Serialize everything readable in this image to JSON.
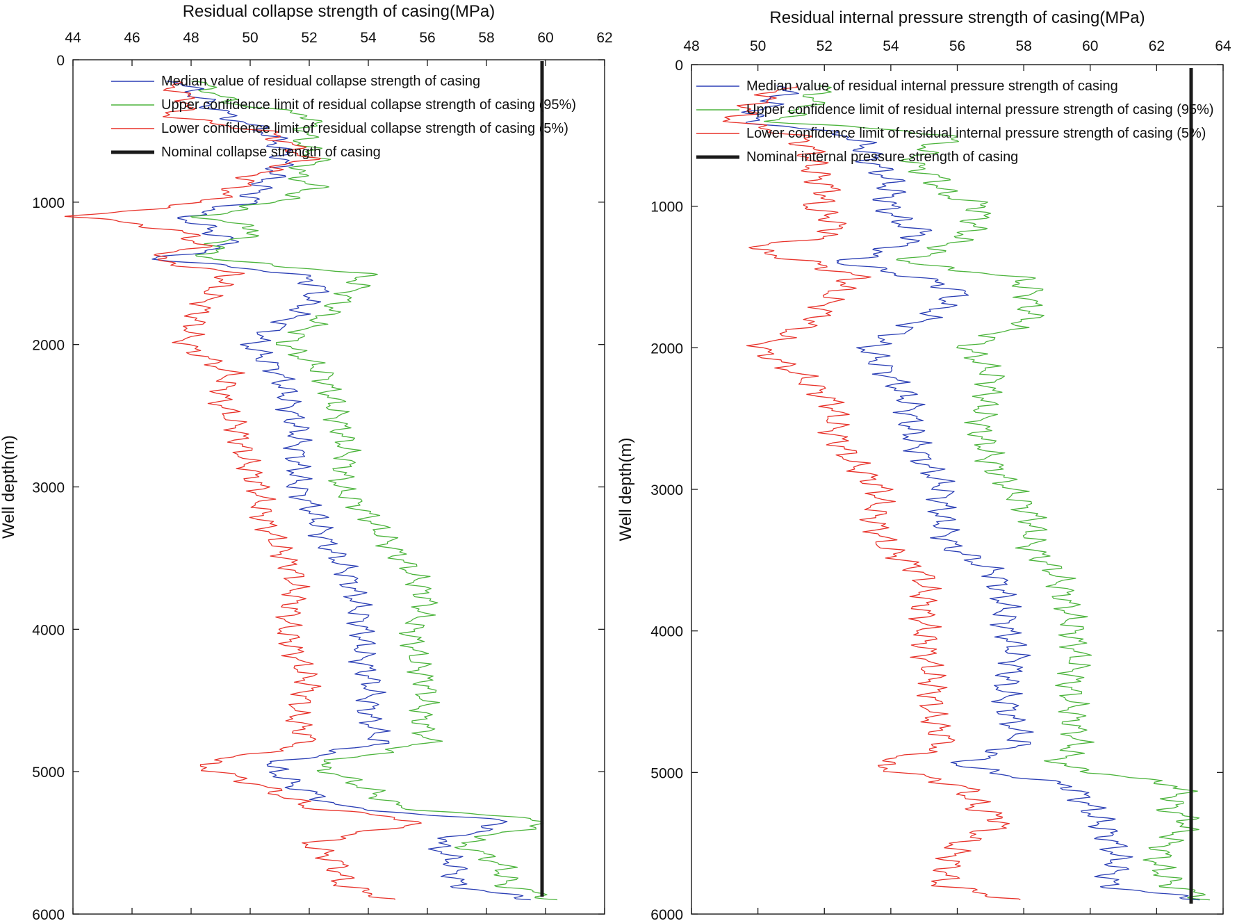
{
  "figure": {
    "panels": [
      "left-panel",
      "right-panel"
    ]
  },
  "chart_data": [
    {
      "type": "line",
      "title": "",
      "xlabel": "Residual collapse strength of casing(MPa)",
      "ylabel": "Well depth(m)",
      "xlim": [
        44,
        62
      ],
      "ylim": [
        0,
        6000
      ],
      "y_inverted": true,
      "x_axis_position": "top",
      "grid": false,
      "legend_position": "top",
      "x_ticks": [
        "44",
        "46",
        "48",
        "50",
        "52",
        "54",
        "56",
        "58",
        "60",
        "62"
      ],
      "y_ticks": [
        "0",
        "1000",
        "2000",
        "3000",
        "4000",
        "5000",
        "6000"
      ],
      "depth": [
        150,
        300,
        400,
        500,
        600,
        700,
        800,
        900,
        1000,
        1100,
        1200,
        1300,
        1400,
        1500,
        1600,
        1800,
        2000,
        2200,
        2400,
        2600,
        2800,
        3000,
        3200,
        3400,
        3600,
        3800,
        4000,
        4200,
        4400,
        4600,
        4800,
        4950,
        5100,
        5250,
        5350,
        5500,
        5650,
        5800,
        5900
      ],
      "series": [
        {
          "name": "Median value of residual collapse strength of casing",
          "color": "#2b3fb5",
          "width": 1.3,
          "values": [
            47.6,
            48.5,
            49.3,
            50.5,
            51.0,
            51.2,
            50.8,
            50.3,
            50.0,
            47.7,
            48.7,
            49.5,
            46.8,
            51.5,
            52.4,
            51.5,
            50.0,
            51.0,
            51.3,
            51.6,
            51.6,
            51.6,
            52.2,
            52.6,
            53.3,
            53.6,
            53.8,
            53.8,
            54.1,
            54.0,
            54.4,
            50.6,
            51.5,
            53.1,
            58.8,
            56.3,
            56.9,
            57.0,
            59.5
          ]
        },
        {
          "name": "Upper confidence limit of residual collapse strength of casing (95%)",
          "color": "#4cb43c",
          "width": 1.3,
          "values": [
            48.2,
            49.3,
            52.2,
            51.9,
            51.8,
            52.3,
            51.5,
            52.2,
            50.8,
            48.4,
            50.4,
            48.8,
            48.6,
            53.8,
            53.6,
            52.5,
            51.2,
            52.5,
            52.8,
            53.1,
            53.3,
            53.0,
            54.0,
            54.7,
            55.5,
            56.0,
            55.5,
            55.6,
            56.0,
            55.8,
            56.0,
            52.2,
            53.8,
            55.0,
            60.3,
            57.1,
            58.5,
            58.7,
            60.4
          ]
        },
        {
          "name": "Lower confidence limit of residual collapse strength of casing (5%)",
          "color": "#e8322a",
          "width": 1.3,
          "values": [
            47.2,
            48.0,
            47.3,
            50.5,
            51.4,
            51.9,
            50.2,
            49.6,
            48.5,
            44.2,
            47.6,
            48.4,
            46.6,
            49.4,
            48.8,
            48.2,
            47.8,
            49.3,
            49.0,
            49.6,
            49.8,
            50.3,
            50.4,
            50.9,
            51.5,
            51.5,
            51.2,
            51.6,
            52.0,
            51.5,
            52.0,
            48.2,
            50.4,
            52.0,
            55.9,
            52.0,
            53.0,
            53.1,
            54.9
          ]
        },
        {
          "name": "Nominal collapse strength of casing",
          "color": "#1a1a1a",
          "width": 5,
          "values": [
            60.0,
            60.0
          ]
        }
      ]
    },
    {
      "type": "line",
      "title": "",
      "xlabel": "Residual internal pressure strength of casing(MPa)",
      "ylabel": "Well depth(m)",
      "xlim": [
        48,
        64
      ],
      "ylim": [
        0,
        6000
      ],
      "y_inverted": true,
      "x_axis_position": "top",
      "grid": false,
      "legend_position": "top",
      "x_ticks": [
        "48",
        "50",
        "52",
        "54",
        "56",
        "58",
        "60",
        "62",
        "64"
      ],
      "y_ticks": [
        "0",
        "1000",
        "2000",
        "3000",
        "4000",
        "5000",
        "6000"
      ],
      "depth": [
        150,
        300,
        400,
        500,
        600,
        700,
        800,
        900,
        1000,
        1100,
        1200,
        1300,
        1400,
        1500,
        1600,
        1800,
        2000,
        2200,
        2400,
        2600,
        2800,
        3000,
        3200,
        3400,
        3600,
        3800,
        4000,
        4200,
        4400,
        4600,
        4800,
        4950,
        5100,
        5250,
        5350,
        5500,
        5650,
        5800,
        5900
      ],
      "series": [
        {
          "name": "Median value of residual internal pressure strength of casing",
          "color": "#2b3fb5",
          "width": 1.3,
          "values": [
            51.0,
            50.2,
            49.7,
            52.8,
            53.3,
            53.5,
            53.9,
            54.0,
            53.9,
            54.2,
            55.0,
            54.0,
            52.5,
            54.8,
            56.1,
            55.0,
            53.3,
            54.0,
            54.6,
            54.6,
            55.0,
            55.6,
            55.5,
            55.8,
            57.2,
            57.4,
            57.5,
            57.8,
            57.4,
            57.6,
            57.9,
            56.0,
            59.5,
            60.0,
            60.3,
            60.7,
            60.8,
            60.5,
            63.3
          ]
        },
        {
          "name": "Upper confidence limit of residual internal pressure strength of casing (95%)",
          "color": "#4cb43c",
          "width": 1.3,
          "values": [
            52.0,
            51.5,
            50.5,
            56.0,
            55.0,
            54.6,
            55.4,
            55.5,
            56.8,
            56.6,
            56.3,
            55.5,
            54.4,
            57.8,
            58.2,
            58.2,
            56.3,
            57.1,
            56.8,
            56.7,
            57.0,
            57.6,
            58.3,
            58.2,
            59.0,
            59.3,
            59.5,
            59.6,
            59.4,
            59.5,
            59.6,
            59.0,
            62.8,
            62.4,
            63.0,
            62.3,
            62.0,
            62.5,
            63.6
          ]
        },
        {
          "name": "Lower confidence limit of residual internal pressure strength of casing (5%)",
          "color": "#e8322a",
          "width": 1.3,
          "values": [
            50.8,
            49.8,
            49.2,
            51.2,
            51.6,
            51.6,
            51.8,
            52.2,
            51.6,
            52.3,
            52.3,
            49.7,
            51.6,
            53.0,
            52.3,
            51.8,
            50.0,
            51.3,
            52.3,
            52.3,
            52.8,
            53.7,
            53.5,
            53.8,
            55.0,
            55.0,
            55.0,
            55.1,
            55.3,
            55.2,
            55.7,
            53.5,
            56.2,
            56.6,
            57.5,
            56.0,
            55.8,
            55.5,
            57.9
          ]
        },
        {
          "name": "Nominal internal pressure strength of casing",
          "color": "#1a1a1a",
          "width": 5,
          "values": [
            63.2,
            63.2
          ]
        }
      ]
    }
  ]
}
